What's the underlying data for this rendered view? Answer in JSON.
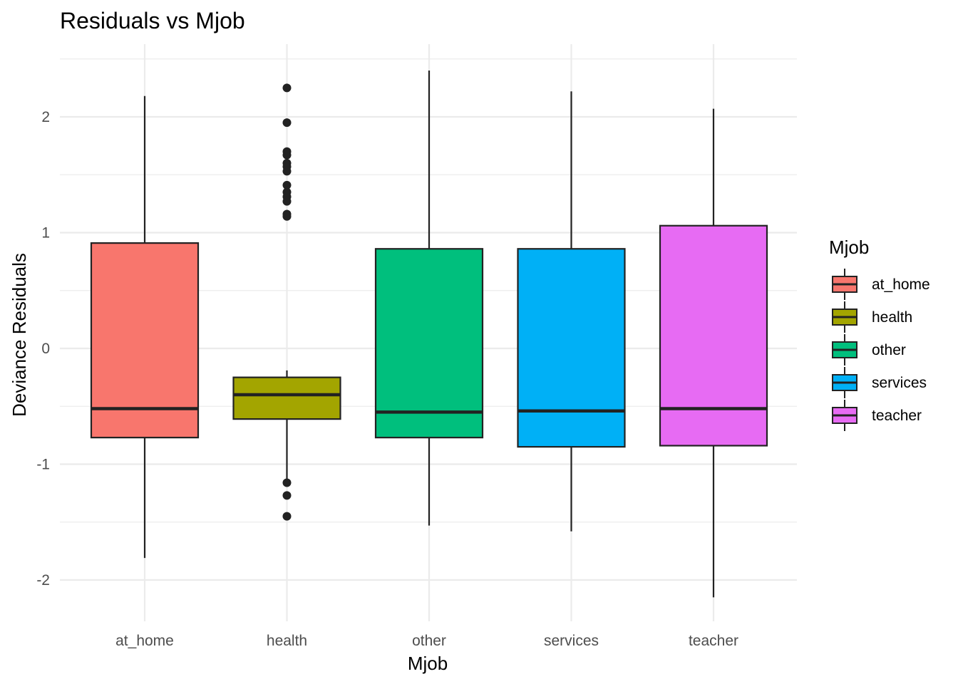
{
  "chart_data": {
    "type": "boxplot",
    "title": "Residuals vs Mjob",
    "xlabel": "Mjob",
    "ylabel": "Deviance Residuals",
    "categories": [
      "at_home",
      "health",
      "other",
      "services",
      "teacher"
    ],
    "ylim": [
      -2.3,
      2.5
    ],
    "yticks": [
      -2,
      -1,
      0,
      1,
      2
    ],
    "grid": true,
    "legend": {
      "title": "Mjob",
      "placement": "right",
      "entries": [
        "at_home",
        "health",
        "other",
        "services",
        "teacher"
      ]
    },
    "series": [
      {
        "category": "at_home",
        "color": "#F8766D",
        "whisker_low": -1.81,
        "q1": -0.77,
        "median": -0.52,
        "q3": 0.91,
        "whisker_high": 2.18,
        "outliers": []
      },
      {
        "category": "health",
        "color": "#A3A500",
        "whisker_low": -1.16,
        "q1": -0.61,
        "median": -0.4,
        "q3": -0.25,
        "whisker_high": -0.19,
        "outliers": [
          2.25,
          1.95,
          1.7,
          1.67,
          1.6,
          1.57,
          1.53,
          1.41,
          1.35,
          1.31,
          1.27,
          1.16,
          1.14,
          -1.16,
          -1.27,
          -1.45
        ]
      },
      {
        "category": "other",
        "color": "#00BF7D",
        "whisker_low": -1.53,
        "q1": -0.77,
        "median": -0.55,
        "q3": 0.86,
        "whisker_high": 2.4,
        "outliers": []
      },
      {
        "category": "services",
        "color": "#00B0F6",
        "whisker_low": -1.58,
        "q1": -0.85,
        "median": -0.54,
        "q3": 0.86,
        "whisker_high": 2.22,
        "outliers": []
      },
      {
        "category": "teacher",
        "color": "#E76BF3",
        "whisker_low": -2.15,
        "q1": -0.84,
        "median": -0.52,
        "q3": 1.06,
        "whisker_high": 2.07,
        "outliers": []
      }
    ]
  }
}
